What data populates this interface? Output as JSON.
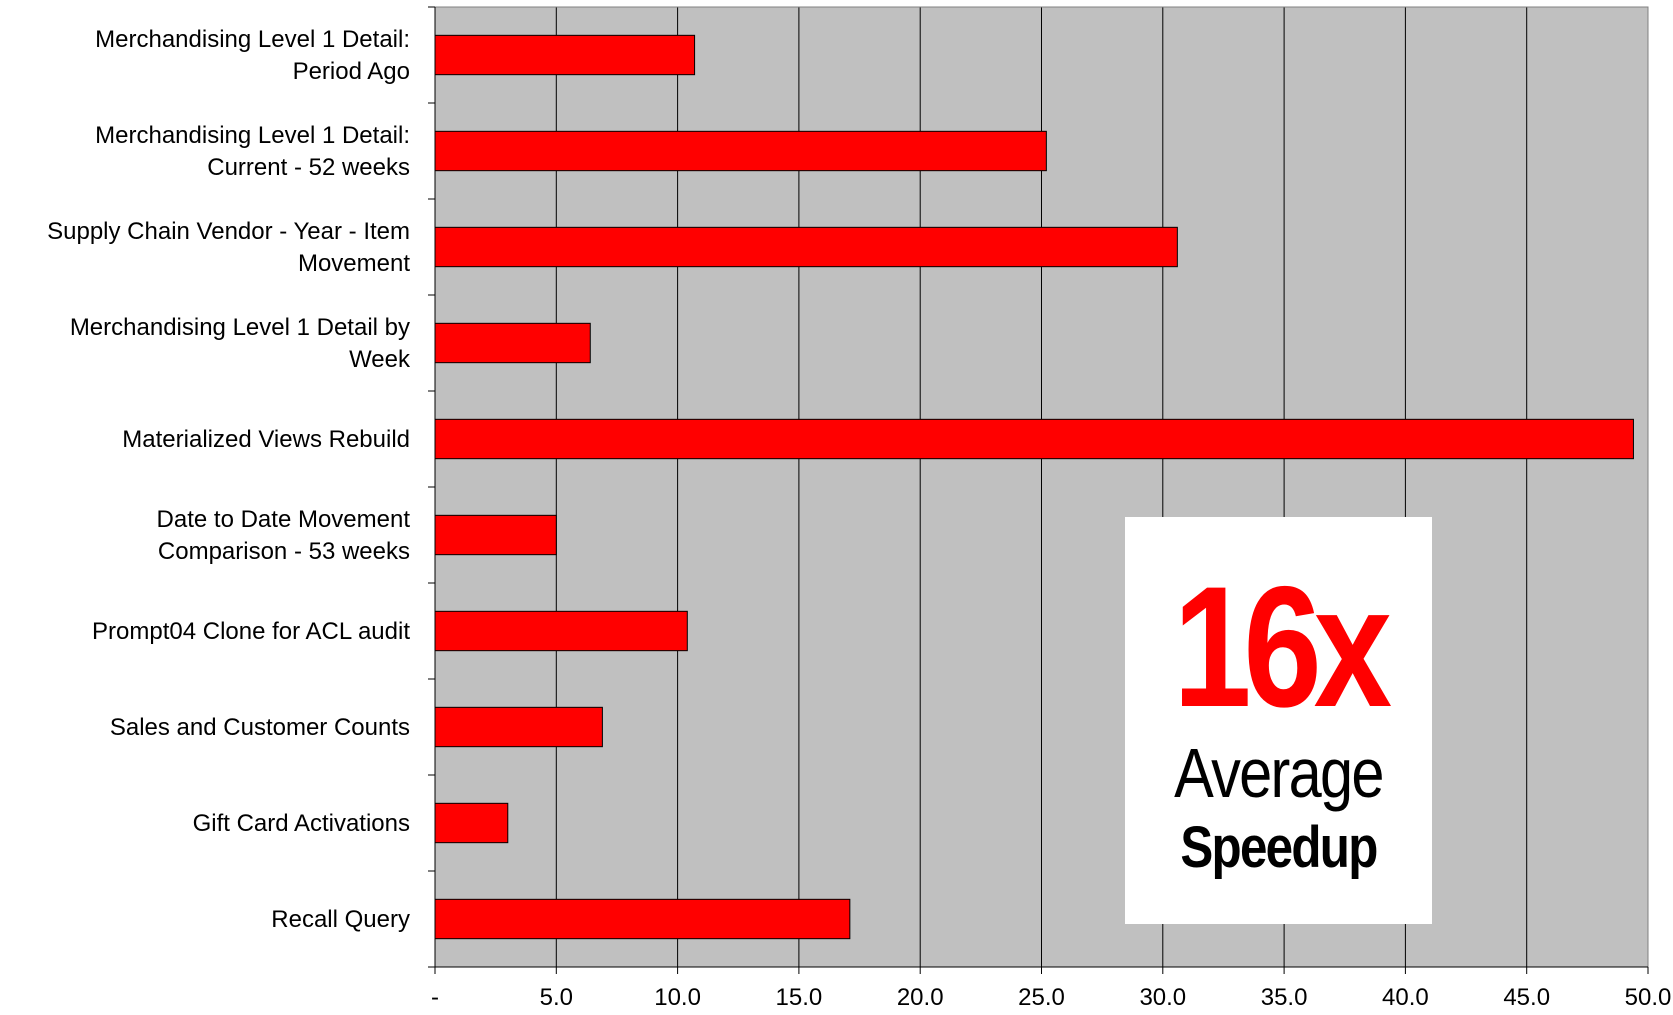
{
  "chart_data": {
    "type": "bar",
    "orientation": "horizontal",
    "categories": [
      [
        "Merchandising Level 1 Detail:",
        "Period Ago"
      ],
      [
        "Merchandising Level 1 Detail:",
        "Current - 52 weeks"
      ],
      [
        "Supply Chain Vendor - Year - Item",
        "Movement"
      ],
      [
        "Merchandising Level 1 Detail by",
        "Week"
      ],
      [
        "Materialized Views Rebuild"
      ],
      [
        "Date to Date Movement",
        "Comparison - 53 weeks"
      ],
      [
        "Prompt04 Clone for ACL audit"
      ],
      [
        "Sales and Customer Counts"
      ],
      [
        "Gift Card Activations"
      ],
      [
        "Recall Query"
      ]
    ],
    "values": [
      10.7,
      25.2,
      30.6,
      6.4,
      49.4,
      5.0,
      10.4,
      6.9,
      3.0,
      17.1
    ],
    "xlim": [
      0,
      50
    ],
    "xticks": [
      0,
      5,
      10,
      15,
      20,
      25,
      30,
      35,
      40,
      45,
      50
    ],
    "xtick_labels": [
      "-",
      "5.0",
      "10.0",
      "15.0",
      "20.0",
      "25.0",
      "30.0",
      "35.0",
      "40.0",
      "45.0",
      "50.0"
    ],
    "grid": "vertical",
    "legend": "none",
    "title": "",
    "xlabel": "",
    "ylabel": ""
  },
  "colors": {
    "bar": "#ff0000",
    "plot_background": "#c0c0c0",
    "highlight": "#ff0000"
  },
  "badge": {
    "value": "16x",
    "line1": "Average",
    "line2": "Speedup"
  }
}
